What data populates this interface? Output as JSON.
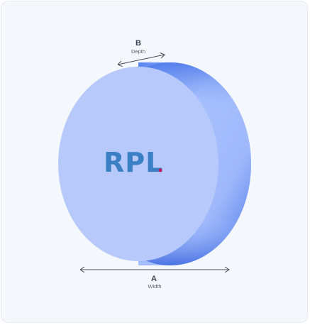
{
  "logo": {
    "text": "RPL",
    "dot_color": "#c2185b",
    "text_color": "#3b7fc4"
  },
  "dimensions": {
    "depth": {
      "letter": "B",
      "caption": "Depth"
    },
    "width": {
      "letter": "A",
      "caption": "Width"
    }
  },
  "colors": {
    "face": "#b7c9fb",
    "rim_light": "#a9c1fd",
    "rim_dark": "#4f7bea",
    "background": "#f4f7fc"
  }
}
